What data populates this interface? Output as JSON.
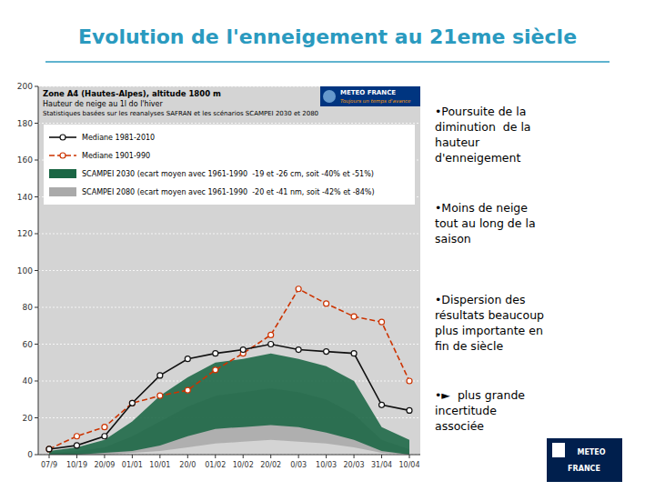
{
  "chart_data": {
    "type": "line",
    "title": "Evolution de l'enneigement au 21eme siècle",
    "subtitle": "Zone A4 (Hautes-Alpes), altitude 1800 m",
    "annotations": [
      "Hauteur de neige au 1l do l'hiver",
      "Statistiques basées sur les reanalyses SAFRAN et les scénarios SCAMPEI 2030 et 2080",
      "•Poursuite de la\ndiminution  de la\nhauteur\nd'enneigement",
      "•Moins de neige\ntout au long de la\nsaison",
      "•Dispersion des\nrésultats beaucoup\nplus importante en\nfin de siècle",
      "•►  plus grande\nincertitude\nassociée",
      "METEO FRANCE",
      "Toujours un temps d'avance",
      "METEO",
      "FRANCE"
    ],
    "categories": [
      "07/9",
      "10/19",
      "20/09",
      "01/01",
      "10/01",
      "20/0",
      "01/02",
      "10/02",
      "20/02",
      "0/03",
      "10/03",
      "20/03",
      "31/04",
      "10/04"
    ],
    "series": [
      {
        "name": "Mediane 1981-2010",
        "type": "line",
        "color": "#111111",
        "marker": "circle",
        "line_style": "solid",
        "values": [
          3,
          5,
          10,
          28,
          43,
          52,
          55,
          57,
          60,
          57,
          56,
          55,
          27,
          24
        ]
      },
      {
        "name": "Mediane 1901-990",
        "type": "line",
        "color": "#cc3300",
        "marker": "circle",
        "line_style": "dashed",
        "values": [
          3,
          10,
          15,
          28,
          32,
          35,
          46,
          55,
          65,
          90,
          82,
          75,
          72,
          40
        ]
      },
      {
        "name": "SCAMPEI 2030 (ecart moyen avec 1961-1990  -19 et -26 cm, soit -40% et -51%)",
        "type": "band",
        "color": "#1a6644",
        "lower": [
          0,
          0,
          1,
          2,
          5,
          10,
          14,
          15,
          16,
          15,
          12,
          8,
          2,
          0
        ],
        "upper": [
          2,
          4,
          8,
          18,
          32,
          42,
          50,
          52,
          55,
          52,
          48,
          40,
          15,
          8
        ]
      },
      {
        "name": "SCAMPEI 2080 (ecart moyen avec 1961-1990  -20 et -41 nm, soit -42% et -84%)",
        "type": "band",
        "color": "#aaaaaa",
        "lower": [
          0,
          0,
          0,
          1,
          2,
          4,
          6,
          7,
          8,
          7,
          6,
          4,
          1,
          0
        ],
        "upper": [
          1,
          2,
          4,
          10,
          18,
          26,
          32,
          34,
          36,
          34,
          30,
          22,
          8,
          3
        ]
      }
    ],
    "ylim": [
      0,
      200
    ],
    "yticks": [
      0,
      20,
      40,
      60,
      80,
      100,
      120,
      140,
      160,
      180,
      200
    ],
    "grid": true,
    "legend": "upper left"
  }
}
